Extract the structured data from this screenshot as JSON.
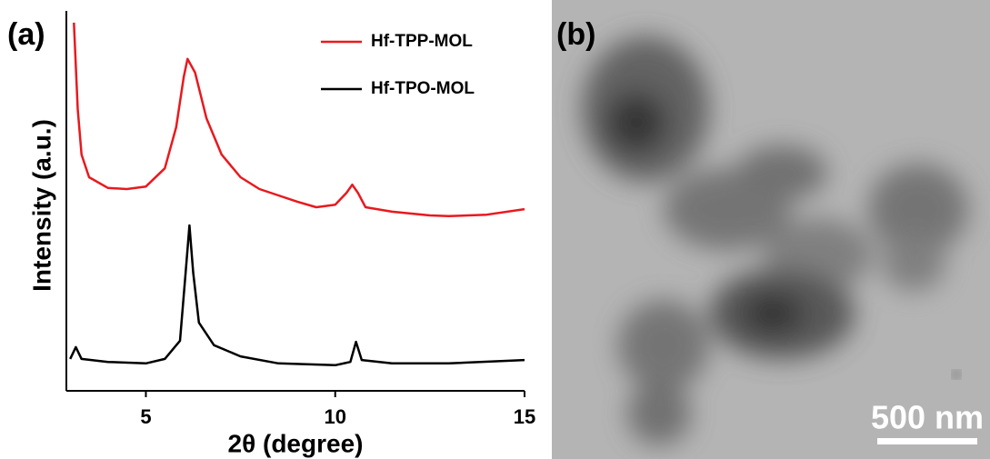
{
  "chart_data": {
    "type": "line",
    "panel_label": "(a)",
    "x_label": "2θ (degree)",
    "y_label": "Intensity (a.u.)",
    "xlim": [
      2.9,
      15
    ],
    "xticks": [
      5,
      10,
      15
    ],
    "ylim": [
      0,
      100
    ],
    "legend": "top-right",
    "series": [
      {
        "name": "Hf-TPP-MOL",
        "color": "#e8191e",
        "x": [
          3.1,
          3.2,
          3.3,
          3.5,
          4.0,
          4.5,
          5.0,
          5.5,
          5.8,
          6.0,
          6.1,
          6.3,
          6.6,
          7.0,
          7.5,
          8.0,
          8.5,
          9.0,
          9.5,
          10.0,
          10.3,
          10.45,
          10.6,
          10.8,
          11.5,
          12.5,
          13.0,
          14.0,
          15.0
        ],
        "values": [
          99.3,
          76.0,
          63.7,
          57.6,
          54.7,
          54.4,
          55.1,
          60.0,
          71.1,
          84.6,
          89.5,
          85.8,
          73.5,
          63.7,
          57.6,
          54.4,
          52.7,
          51.0,
          49.5,
          50.2,
          53.4,
          55.6,
          53.4,
          49.5,
          48.3,
          47.3,
          47.1,
          47.5,
          49.0
        ]
      },
      {
        "name": "Hf-TPO-MOL",
        "color": "#000000",
        "x": [
          3.0,
          3.15,
          3.3,
          4.0,
          5.0,
          5.5,
          5.9,
          6.05,
          6.15,
          6.25,
          6.4,
          6.8,
          7.5,
          8.5,
          10.0,
          10.4,
          10.55,
          10.7,
          11.5,
          13.0,
          15.0
        ],
        "values": [
          8.6,
          11.8,
          8.6,
          7.8,
          7.4,
          8.6,
          13.5,
          31.9,
          44.6,
          31.9,
          18.4,
          12.3,
          9.3,
          7.4,
          6.9,
          7.8,
          13.2,
          8.3,
          7.4,
          7.4,
          8.3
        ]
      }
    ]
  },
  "image": {
    "panel_label": "(b)",
    "scale_bar": "500 nm"
  }
}
